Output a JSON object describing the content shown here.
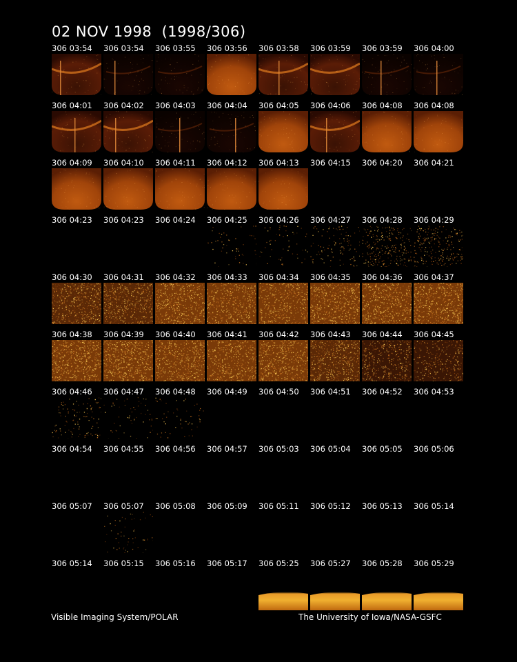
{
  "title": "02 NOV 1998  (1998/306)",
  "footer": {
    "left": "Visible Imaging System/POLAR",
    "right": "The University of Iowa/NASA-GSFC"
  },
  "frames": [
    {
      "label": "306 03:54",
      "style": "arc",
      "streak": true
    },
    {
      "label": "306 03:54",
      "style": "faint-arc",
      "streak": true
    },
    {
      "label": "306 03:55",
      "style": "faint-arc",
      "streak": false
    },
    {
      "label": "306 03:56",
      "style": "full",
      "streak": false
    },
    {
      "label": "306 03:58",
      "style": "arc",
      "streak": true
    },
    {
      "label": "306 03:59",
      "style": "arc",
      "streak": false
    },
    {
      "label": "306 03:59",
      "style": "faint-arc",
      "streak": true
    },
    {
      "label": "306 04:00",
      "style": "faint-arc",
      "streak": true
    },
    {
      "label": "306 04:01",
      "style": "arc",
      "streak": true
    },
    {
      "label": "306 04:02",
      "style": "arc",
      "streak": true
    },
    {
      "label": "306 04:03",
      "style": "faint-arc",
      "streak": true
    },
    {
      "label": "306 04:04",
      "style": "faint-arc",
      "streak": true
    },
    {
      "label": "306 04:05",
      "style": "full",
      "streak": false
    },
    {
      "label": "306 04:06",
      "style": "arc",
      "streak": true
    },
    {
      "label": "306 04:08",
      "style": "full",
      "streak": false
    },
    {
      "label": "306 04:08",
      "style": "full",
      "streak": false
    },
    {
      "label": "306 04:09",
      "style": "full",
      "streak": false
    },
    {
      "label": "306 04:10",
      "style": "full",
      "streak": false
    },
    {
      "label": "306 04:11",
      "style": "full",
      "streak": false
    },
    {
      "label": "306 04:12",
      "style": "full",
      "streak": false
    },
    {
      "label": "306 04:13",
      "style": "full",
      "streak": false
    },
    {
      "label": "306 04:15",
      "style": "none",
      "streak": false
    },
    {
      "label": "306 04:20",
      "style": "none",
      "streak": false
    },
    {
      "label": "306 04:21",
      "style": "none",
      "streak": false
    },
    {
      "label": "306 04:23",
      "style": "none",
      "streak": false
    },
    {
      "label": "306 04:23",
      "style": "none",
      "streak": false
    },
    {
      "label": "306 04:24",
      "style": "none",
      "streak": false
    },
    {
      "label": "306 04:25",
      "style": "speck1",
      "streak": false
    },
    {
      "label": "306 04:26",
      "style": "speck1",
      "streak": false
    },
    {
      "label": "306 04:27",
      "style": "speck2",
      "streak": false
    },
    {
      "label": "306 04:28",
      "style": "speck3",
      "streak": false
    },
    {
      "label": "306 04:29",
      "style": "speck3",
      "streak": false
    },
    {
      "label": "306 04:30",
      "style": "noise4",
      "streak": false
    },
    {
      "label": "306 04:31",
      "style": "noise4",
      "streak": false
    },
    {
      "label": "306 04:32",
      "style": "noise5",
      "streak": false
    },
    {
      "label": "306 04:33",
      "style": "noise5",
      "streak": false
    },
    {
      "label": "306 04:34",
      "style": "noise5",
      "streak": false
    },
    {
      "label": "306 04:35",
      "style": "noise6",
      "streak": false
    },
    {
      "label": "306 04:36",
      "style": "noise6",
      "streak": false
    },
    {
      "label": "306 04:37",
      "style": "noise6",
      "streak": false
    },
    {
      "label": "306 04:38",
      "style": "noise6",
      "streak": false
    },
    {
      "label": "306 04:39",
      "style": "noise6",
      "streak": false
    },
    {
      "label": "306 04:40",
      "style": "noise6",
      "streak": false
    },
    {
      "label": "306 04:41",
      "style": "noise5",
      "streak": false
    },
    {
      "label": "306 04:42",
      "style": "noise5",
      "streak": false
    },
    {
      "label": "306 04:43",
      "style": "noise4",
      "streak": false
    },
    {
      "label": "306 04:44",
      "style": "noise3",
      "streak": false
    },
    {
      "label": "306 04:45",
      "style": "noise2",
      "streak": false
    },
    {
      "label": "306 04:46",
      "style": "speck2",
      "streak": false
    },
    {
      "label": "306 04:47",
      "style": "speck1",
      "streak": false
    },
    {
      "label": "306 04:48",
      "style": "speck1",
      "streak": false
    },
    {
      "label": "306 04:49",
      "style": "none",
      "streak": false
    },
    {
      "label": "306 04:50",
      "style": "none",
      "streak": false
    },
    {
      "label": "306 04:51",
      "style": "none",
      "streak": false
    },
    {
      "label": "306 04:52",
      "style": "none",
      "streak": false
    },
    {
      "label": "306 04:53",
      "style": "none",
      "streak": false
    },
    {
      "label": "306 04:54",
      "style": "none",
      "streak": false
    },
    {
      "label": "306 04:55",
      "style": "none",
      "streak": false
    },
    {
      "label": "306 04:56",
      "style": "none",
      "streak": false
    },
    {
      "label": "306 04:57",
      "style": "none",
      "streak": false
    },
    {
      "label": "306 05:03",
      "style": "none",
      "streak": false
    },
    {
      "label": "306 05:04",
      "style": "none",
      "streak": false
    },
    {
      "label": "306 05:05",
      "style": "none",
      "streak": false
    },
    {
      "label": "306 05:06",
      "style": "none",
      "streak": false
    },
    {
      "label": "306 05:07",
      "style": "none",
      "streak": false
    },
    {
      "label": "306 05:07",
      "style": "speck1",
      "streak": false
    },
    {
      "label": "306 05:08",
      "style": "none",
      "streak": false
    },
    {
      "label": "306 05:09",
      "style": "none",
      "streak": false
    },
    {
      "label": "306 05:11",
      "style": "none",
      "streak": false
    },
    {
      "label": "306 05:12",
      "style": "none",
      "streak": false
    },
    {
      "label": "306 05:13",
      "style": "none",
      "streak": false
    },
    {
      "label": "306 05:14",
      "style": "none",
      "streak": false
    },
    {
      "label": "306 05:14",
      "style": "none",
      "streak": false
    },
    {
      "label": "306 05:15",
      "style": "none",
      "streak": false
    },
    {
      "label": "306 05:16",
      "style": "none",
      "streak": false
    },
    {
      "label": "306 05:17",
      "style": "none",
      "streak": false
    },
    {
      "label": "306 05:25",
      "style": "band",
      "streak": false
    },
    {
      "label": "306 05:27",
      "style": "band",
      "streak": false
    },
    {
      "label": "306 05:28",
      "style": "band",
      "streak": false
    },
    {
      "label": "306 05:29",
      "style": "band",
      "streak": false
    }
  ]
}
